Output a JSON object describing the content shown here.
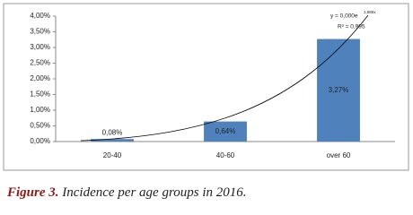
{
  "chart_data": {
    "type": "bar",
    "categories": [
      "20-40",
      "40-60",
      "over 60"
    ],
    "values": [
      0.08,
      0.64,
      3.27
    ],
    "value_labels": [
      "0,08%",
      "0,64%",
      "3,27%"
    ],
    "color": "#4f81bd",
    "ylim": [
      0,
      4
    ],
    "yticks": [
      {
        "value": 0,
        "label": "0,00%"
      },
      {
        "value": 0.5,
        "label": "0,50%"
      },
      {
        "value": 1,
        "label": "1,00%"
      },
      {
        "value": 1.5,
        "label": "1,50%"
      },
      {
        "value": 2,
        "label": "2,00%"
      },
      {
        "value": 2.5,
        "label": "2,50%"
      },
      {
        "value": 3,
        "label": "3,00%"
      },
      {
        "value": 3.5,
        "label": "3,50%"
      },
      {
        "value": 4,
        "label": "4,00%"
      }
    ],
    "grid": false,
    "trendline": {
      "equation": "y = 0,000e",
      "exponent": "1,886x",
      "r2": "R² = 0,995"
    }
  },
  "caption": {
    "label": "Figure 3.",
    "text": "Incidence per age groups in 2016."
  }
}
